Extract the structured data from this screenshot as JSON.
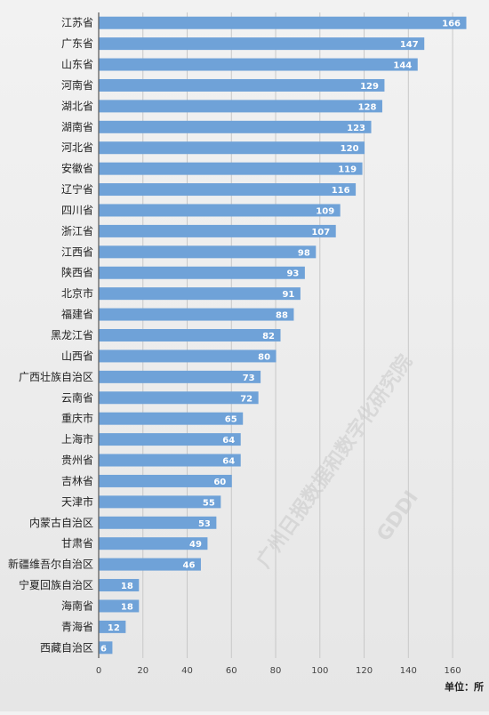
{
  "chart_data": {
    "type": "bar",
    "orientation": "horizontal",
    "categories": [
      "江苏省",
      "广东省",
      "山东省",
      "河南省",
      "湖北省",
      "湖南省",
      "河北省",
      "安徽省",
      "辽宁省",
      "四川省",
      "浙江省",
      "江西省",
      "陕西省",
      "北京市",
      "福建省",
      "黑龙江省",
      "山西省",
      "广西壮族自治区",
      "云南省",
      "重庆市",
      "上海市",
      "贵州省",
      "吉林省",
      "天津市",
      "内蒙古自治区",
      "甘肃省",
      "新疆维吾尔自治区",
      "宁夏回族自治区",
      "海南省",
      "青海省",
      "西藏自治区"
    ],
    "values": [
      166,
      147,
      144,
      129,
      128,
      123,
      120,
      119,
      116,
      109,
      107,
      98,
      93,
      91,
      88,
      82,
      80,
      73,
      72,
      65,
      64,
      64,
      60,
      55,
      53,
      49,
      46,
      18,
      18,
      12,
      6
    ],
    "xlim": [
      0,
      170
    ],
    "xticks": [
      0,
      20,
      40,
      60,
      80,
      100,
      120,
      140,
      160
    ],
    "unit_label": "单位：所",
    "grid": true,
    "bar_color": "#6fa2d8"
  },
  "watermark": {
    "line1": "广州日报数据和数字化研究院",
    "line2": "GDDI"
  }
}
